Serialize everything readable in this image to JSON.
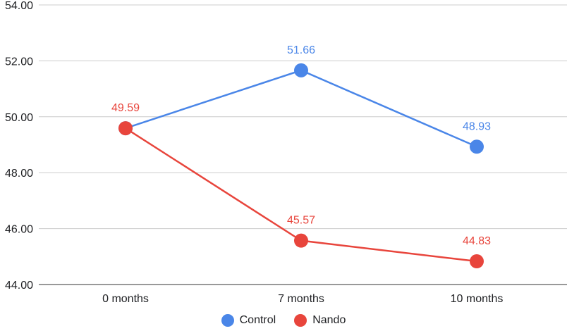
{
  "chart_data": {
    "type": "line",
    "categories": [
      "0 months",
      "7 months",
      "10 months"
    ],
    "series": [
      {
        "name": "Control",
        "values": [
          49.59,
          51.66,
          48.93
        ],
        "color": "#4a86e8",
        "labels": [
          "",
          "51.66",
          "48.93"
        ]
      },
      {
        "name": "Nando",
        "values": [
          49.59,
          45.57,
          44.83
        ],
        "color": "#e8453c",
        "labels": [
          "49.59",
          "45.57",
          "44.83"
        ]
      }
    ],
    "ylim": [
      44,
      54
    ],
    "yticks": [
      "44.00",
      "46.00",
      "48.00",
      "50.00",
      "52.00",
      "54.00"
    ],
    "grid": true,
    "legend_position": "bottom"
  }
}
